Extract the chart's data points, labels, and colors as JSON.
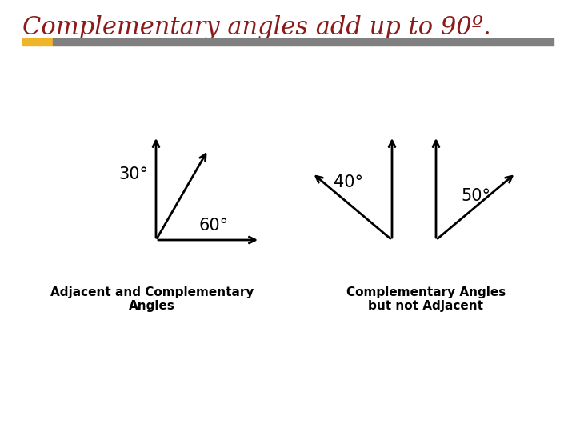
{
  "title": "Complementary angles add up to 90º.",
  "title_color": "#8B1A1A",
  "title_fontsize": 22,
  "bg_color": "#ffffff",
  "header_bar_color1": "#F0B429",
  "header_bar_color2": "#808080",
  "left_label": "Adjacent and Complementary\nAngles",
  "right_label": "Complementary Angles\nbut not Adjacent",
  "angle30_label": "30°",
  "angle60_label": "60°",
  "angle40_label": "40°",
  "angle50_label": "50°",
  "arrow_color": "#000000",
  "arrow_lw": 2.0,
  "arrow_mutation_scale": 14
}
